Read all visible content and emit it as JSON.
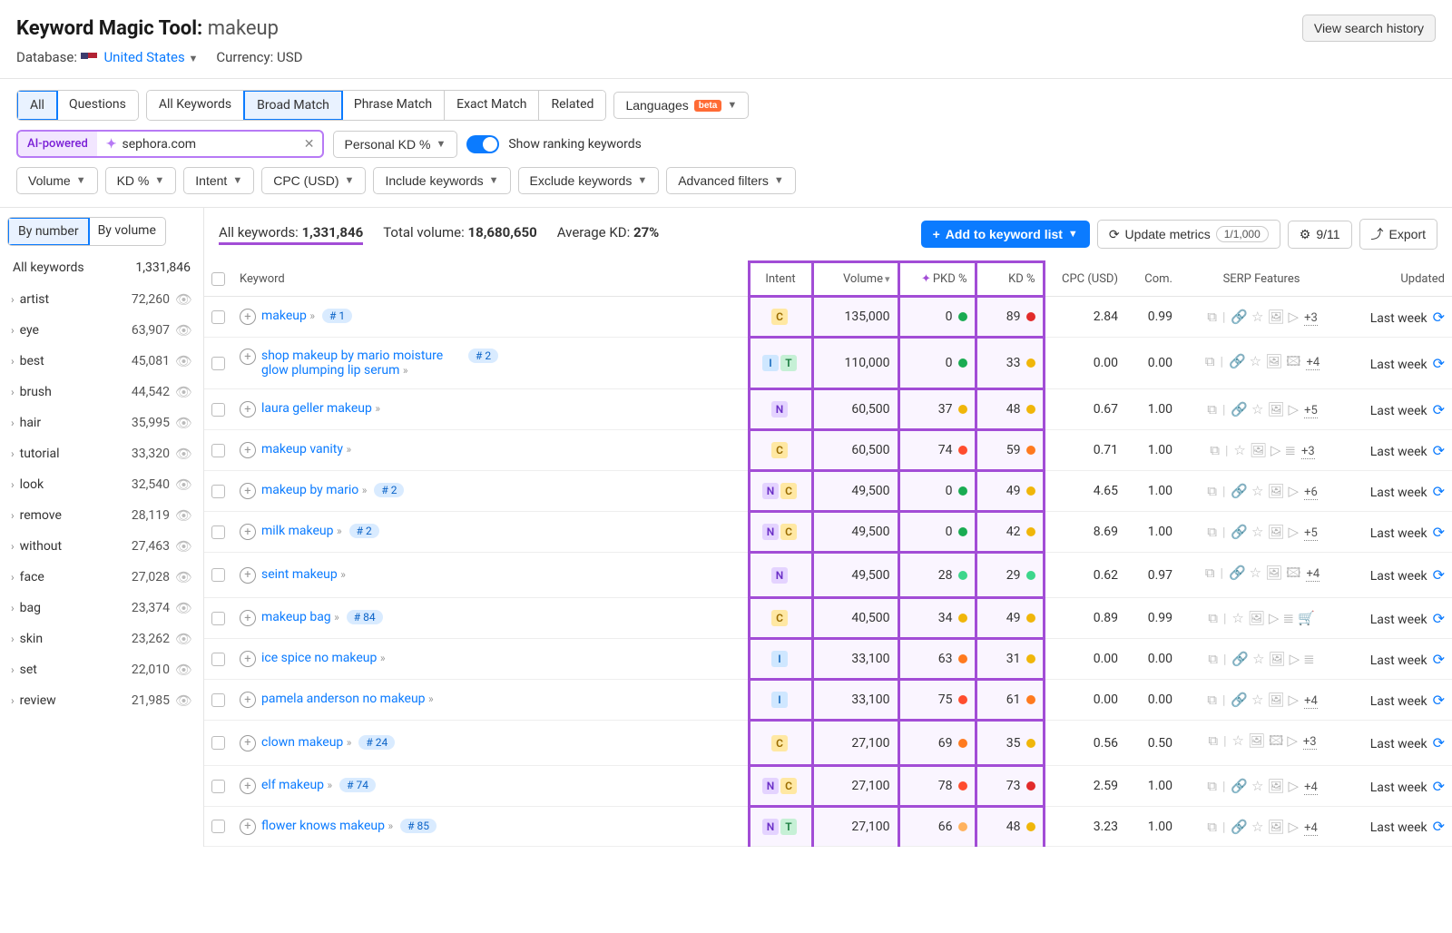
{
  "header": {
    "tool_name": "Keyword Magic Tool:",
    "query": "makeup",
    "history_btn": "View search history",
    "database_label": "Database:",
    "database_value": "United States",
    "currency_label": "Currency:",
    "currency_value": "USD"
  },
  "tabs": {
    "scope": [
      "All",
      "Questions"
    ],
    "scope_active": 0,
    "match": [
      "All Keywords",
      "Broad Match",
      "Phrase Match",
      "Exact Match",
      "Related"
    ],
    "match_active": 1,
    "languages_label": "Languages",
    "beta": "beta"
  },
  "filters1": {
    "ai_label": "AI-powered",
    "domain": "sephora.com",
    "pkd_label": "Personal KD %",
    "toggle_label": "Show ranking keywords"
  },
  "filters2": [
    "Volume",
    "KD %",
    "Intent",
    "CPC (USD)",
    "Include keywords",
    "Exclude keywords",
    "Advanced filters"
  ],
  "sidebar": {
    "mode": [
      "By number",
      "By volume"
    ],
    "mode_active": 0,
    "all_label": "All keywords",
    "all_count": "1,331,846",
    "items": [
      {
        "label": "artist",
        "count": "72,260"
      },
      {
        "label": "eye",
        "count": "63,907"
      },
      {
        "label": "best",
        "count": "45,081"
      },
      {
        "label": "brush",
        "count": "44,542"
      },
      {
        "label": "hair",
        "count": "35,995"
      },
      {
        "label": "tutorial",
        "count": "33,320"
      },
      {
        "label": "look",
        "count": "32,540"
      },
      {
        "label": "remove",
        "count": "28,119"
      },
      {
        "label": "without",
        "count": "27,463"
      },
      {
        "label": "face",
        "count": "27,028"
      },
      {
        "label": "bag",
        "count": "23,374"
      },
      {
        "label": "skin",
        "count": "23,262"
      },
      {
        "label": "set",
        "count": "22,010"
      },
      {
        "label": "review",
        "count": "21,985"
      }
    ]
  },
  "stats": {
    "all_kw_label": "All keywords:",
    "all_kw_value": "1,331,846",
    "total_vol_label": "Total volume:",
    "total_vol_value": "18,680,650",
    "avg_kd_label": "Average KD:",
    "avg_kd_value": "27%",
    "add_btn": "Add to keyword list",
    "update_btn": "Update metrics",
    "update_pill": "1/1,000",
    "cols_pill": "9/11",
    "export_btn": "Export"
  },
  "table": {
    "cols": {
      "keyword": "Keyword",
      "intent": "Intent",
      "volume": "Volume",
      "pkd": "PKD %",
      "kd": "KD %",
      "cpc": "CPC (USD)",
      "com": "Com.",
      "serp": "SERP Features",
      "updated": "Updated"
    },
    "rows": [
      {
        "kw": "makeup",
        "rank": "# 1",
        "intents": [
          "C"
        ],
        "vol": "135,000",
        "pkd": "0",
        "pkd_c": "#1aab52",
        "kd": "89",
        "kd_c": "#e22b2b",
        "cpc": "2.84",
        "com": "0.99",
        "serp_a": [
          "⧉"
        ],
        "serp_b": [
          "🔗",
          "☆",
          "🖼",
          "▷"
        ],
        "more": "+3",
        "updated": "Last week"
      },
      {
        "kw": "shop makeup by mario moisture glow plumping lip serum",
        "rank": "# 2",
        "intents": [
          "I",
          "T"
        ],
        "vol": "110,000",
        "pkd": "0",
        "pkd_c": "#1aab52",
        "kd": "33",
        "kd_c": "#f0b60a",
        "cpc": "0.00",
        "com": "0.00",
        "serp_a": [
          "⧉"
        ],
        "serp_b": [
          "🔗",
          "☆",
          "🖼",
          "🖾"
        ],
        "more": "+4",
        "updated": "Last week"
      },
      {
        "kw": "laura geller makeup",
        "rank": "",
        "intents": [
          "N"
        ],
        "vol": "60,500",
        "pkd": "37",
        "pkd_c": "#f0b60a",
        "kd": "48",
        "kd_c": "#f0b60a",
        "cpc": "0.67",
        "com": "1.00",
        "serp_a": [
          "⧉"
        ],
        "serp_b": [
          "🔗",
          "☆",
          "🖼",
          "▷"
        ],
        "more": "+5",
        "updated": "Last week"
      },
      {
        "kw": "makeup vanity",
        "rank": "",
        "intents": [
          "C"
        ],
        "vol": "60,500",
        "pkd": "74",
        "pkd_c": "#ff4d2e",
        "kd": "59",
        "kd_c": "#ff7a1f",
        "cpc": "0.71",
        "com": "1.00",
        "serp_a": [
          "⧉"
        ],
        "serp_b": [
          "☆",
          "🖼",
          "▷",
          "≣"
        ],
        "more": "+3",
        "updated": "Last week"
      },
      {
        "kw": "makeup by mario",
        "rank": "# 2",
        "intents": [
          "N",
          "C"
        ],
        "vol": "49,500",
        "pkd": "0",
        "pkd_c": "#1aab52",
        "kd": "49",
        "kd_c": "#f0b60a",
        "cpc": "4.65",
        "com": "1.00",
        "serp_a": [
          "⧉"
        ],
        "serp_b": [
          "🔗",
          "☆",
          "🖼",
          "▷"
        ],
        "more": "+6",
        "updated": "Last week"
      },
      {
        "kw": "milk makeup",
        "rank": "# 2",
        "intents": [
          "N",
          "C"
        ],
        "vol": "49,500",
        "pkd": "0",
        "pkd_c": "#1aab52",
        "kd": "42",
        "kd_c": "#f0b60a",
        "cpc": "8.69",
        "com": "1.00",
        "serp_a": [
          "⧉"
        ],
        "serp_b": [
          "🔗",
          "☆",
          "🖼",
          "▷"
        ],
        "more": "+5",
        "updated": "Last week"
      },
      {
        "kw": "seint makeup",
        "rank": "",
        "intents": [
          "N"
        ],
        "vol": "49,500",
        "pkd": "28",
        "pkd_c": "#3dd68c",
        "kd": "29",
        "kd_c": "#3dd68c",
        "cpc": "0.62",
        "com": "0.97",
        "serp_a": [
          "⧉"
        ],
        "serp_b": [
          "🔗",
          "☆",
          "🖼",
          "🖾"
        ],
        "more": "+4",
        "updated": "Last week"
      },
      {
        "kw": "makeup bag",
        "rank": "# 84",
        "intents": [
          "C"
        ],
        "vol": "40,500",
        "pkd": "34",
        "pkd_c": "#f0b60a",
        "kd": "49",
        "kd_c": "#f0b60a",
        "cpc": "0.89",
        "com": "0.99",
        "serp_a": [
          "⧉"
        ],
        "serp_b": [
          "☆",
          "🖼",
          "▷",
          "≣",
          "🛒"
        ],
        "more": "",
        "updated": "Last week"
      },
      {
        "kw": "ice spice no makeup",
        "rank": "",
        "intents": [
          "I"
        ],
        "vol": "33,100",
        "pkd": "63",
        "pkd_c": "#ff7a1f",
        "kd": "31",
        "kd_c": "#f0b60a",
        "cpc": "0.00",
        "com": "0.00",
        "serp_a": [
          "⧉"
        ],
        "serp_b": [
          "🔗",
          "☆",
          "🖼",
          "▷",
          "≣"
        ],
        "more": "",
        "updated": "Last week"
      },
      {
        "kw": "pamela anderson no makeup",
        "rank": "",
        "intents": [
          "I"
        ],
        "vol": "33,100",
        "pkd": "75",
        "pkd_c": "#ff4d2e",
        "kd": "61",
        "kd_c": "#ff7a1f",
        "cpc": "0.00",
        "com": "0.00",
        "serp_a": [
          "⧉"
        ],
        "serp_b": [
          "🔗",
          "☆",
          "🖼",
          "▷"
        ],
        "more": "+4",
        "updated": "Last week"
      },
      {
        "kw": "clown makeup",
        "rank": "# 24",
        "intents": [
          "C"
        ],
        "vol": "27,100",
        "pkd": "69",
        "pkd_c": "#ff7a1f",
        "kd": "35",
        "kd_c": "#f0b60a",
        "cpc": "0.56",
        "com": "0.50",
        "serp_a": [
          "⧉"
        ],
        "serp_b": [
          "☆",
          "🖼",
          "🖾",
          "▷"
        ],
        "more": "+3",
        "updated": "Last week"
      },
      {
        "kw": "elf makeup",
        "rank": "# 74",
        "intents": [
          "N",
          "C"
        ],
        "vol": "27,100",
        "pkd": "78",
        "pkd_c": "#ff4d2e",
        "kd": "73",
        "kd_c": "#e22b2b",
        "cpc": "2.59",
        "com": "1.00",
        "serp_a": [
          "⧉"
        ],
        "serp_b": [
          "🔗",
          "☆",
          "🖼",
          "▷"
        ],
        "more": "+4",
        "updated": "Last week"
      },
      {
        "kw": "flower knows makeup",
        "rank": "# 85",
        "intents": [
          "N",
          "T"
        ],
        "vol": "27,100",
        "pkd": "66",
        "pkd_c": "#ffb25e",
        "kd": "48",
        "kd_c": "#f0b60a",
        "cpc": "3.23",
        "com": "1.00",
        "serp_a": [
          "⧉"
        ],
        "serp_b": [
          "🔗",
          "☆",
          "🖼",
          "▷"
        ],
        "more": "+4",
        "updated": "Last week"
      }
    ]
  }
}
